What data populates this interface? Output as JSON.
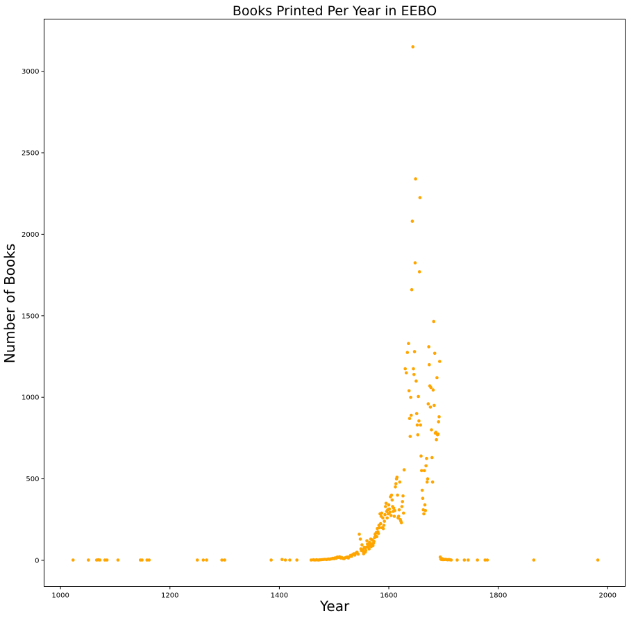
{
  "chart_data": {
    "type": "scatter",
    "title": "Books Printed Per Year in EEBO",
    "xlabel": "Year",
    "ylabel": "Number of Books",
    "xlim": [
      970,
      2032
    ],
    "ylim": [
      -160,
      3320
    ],
    "xticks": [
      1000,
      1200,
      1400,
      1600,
      1800,
      2000
    ],
    "yticks": [
      0,
      500,
      1000,
      1500,
      2000,
      2500,
      3000
    ],
    "grid": false,
    "legend": "none",
    "marker_color": "#ffa500",
    "series": [
      {
        "points": [
          [
            1023,
            2
          ],
          [
            1051,
            2
          ],
          [
            1066,
            2
          ],
          [
            1069,
            3
          ],
          [
            1072,
            2
          ],
          [
            1081,
            2
          ],
          [
            1085,
            2
          ],
          [
            1105,
            2
          ],
          [
            1146,
            2
          ],
          [
            1149,
            2
          ],
          [
            1158,
            2
          ],
          [
            1162,
            2
          ],
          [
            1250,
            2
          ],
          [
            1261,
            2
          ],
          [
            1267,
            2
          ],
          [
            1295,
            2
          ],
          [
            1300,
            2
          ],
          [
            1385,
            2
          ],
          [
            1405,
            5
          ],
          [
            1411,
            2
          ],
          [
            1419,
            2
          ],
          [
            1432,
            2
          ],
          [
            1458,
            2
          ],
          [
            1462,
            3
          ],
          [
            1465,
            2
          ],
          [
            1468,
            3
          ],
          [
            1471,
            2
          ],
          [
            1474,
            3
          ],
          [
            1477,
            4
          ],
          [
            1480,
            5
          ],
          [
            1483,
            6
          ],
          [
            1486,
            5
          ],
          [
            1488,
            7
          ],
          [
            1490,
            8
          ],
          [
            1492,
            6
          ],
          [
            1494,
            9
          ],
          [
            1496,
            10
          ],
          [
            1498,
            12
          ],
          [
            1500,
            10
          ],
          [
            1502,
            15
          ],
          [
            1504,
            13
          ],
          [
            1506,
            20
          ],
          [
            1508,
            18
          ],
          [
            1510,
            22
          ],
          [
            1512,
            14
          ],
          [
            1514,
            17
          ],
          [
            1516,
            12
          ],
          [
            1518,
            10
          ],
          [
            1520,
            15
          ],
          [
            1522,
            18
          ],
          [
            1524,
            20
          ],
          [
            1526,
            14
          ],
          [
            1528,
            22
          ],
          [
            1530,
            30
          ],
          [
            1532,
            25
          ],
          [
            1534,
            35
          ],
          [
            1536,
            40
          ],
          [
            1538,
            32
          ],
          [
            1540,
            45
          ],
          [
            1542,
            50
          ],
          [
            1544,
            38
          ],
          [
            1546,
            160
          ],
          [
            1548,
            130
          ],
          [
            1549,
            70
          ],
          [
            1550,
            60
          ],
          [
            1551,
            95
          ],
          [
            1552,
            65
          ],
          [
            1553,
            55
          ],
          [
            1554,
            40
          ],
          [
            1555,
            80
          ],
          [
            1556,
            75
          ],
          [
            1557,
            50
          ],
          [
            1558,
            60
          ],
          [
            1559,
            80
          ],
          [
            1560,
            120
          ],
          [
            1561,
            100
          ],
          [
            1562,
            90
          ],
          [
            1563,
            85
          ],
          [
            1564,
            70
          ],
          [
            1565,
            110
          ],
          [
            1566,
            95
          ],
          [
            1567,
            130
          ],
          [
            1568,
            85
          ],
          [
            1569,
            100
          ],
          [
            1570,
            125
          ],
          [
            1571,
            90
          ],
          [
            1572,
            105
          ],
          [
            1573,
            115
          ],
          [
            1574,
            140
          ],
          [
            1575,
            160
          ],
          [
            1576,
            150
          ],
          [
            1577,
            170
          ],
          [
            1578,
            145
          ],
          [
            1579,
            195
          ],
          [
            1580,
            175
          ],
          [
            1581,
            165
          ],
          [
            1582,
            215
          ],
          [
            1583,
            200
          ],
          [
            1584,
            285
          ],
          [
            1585,
            225
          ],
          [
            1586,
            270
          ],
          [
            1587,
            290
          ],
          [
            1588,
            200
          ],
          [
            1589,
            260
          ],
          [
            1590,
            195
          ],
          [
            1591,
            215
          ],
          [
            1592,
            240
          ],
          [
            1593,
            280
          ],
          [
            1594,
            330
          ],
          [
            1595,
            350
          ],
          [
            1596,
            300
          ],
          [
            1597,
            260
          ],
          [
            1598,
            310
          ],
          [
            1599,
            285
          ],
          [
            1600,
            340
          ],
          [
            1601,
            315
          ],
          [
            1602,
            295
          ],
          [
            1603,
            390
          ],
          [
            1604,
            275
          ],
          [
            1605,
            400
          ],
          [
            1606,
            370
          ],
          [
            1607,
            330
          ],
          [
            1608,
            300
          ],
          [
            1609,
            320
          ],
          [
            1610,
            270
          ],
          [
            1611,
            305
          ],
          [
            1612,
            450
          ],
          [
            1613,
            470
          ],
          [
            1614,
            500
          ],
          [
            1615,
            510
          ],
          [
            1616,
            400
          ],
          [
            1617,
            260
          ],
          [
            1618,
            270
          ],
          [
            1619,
            310
          ],
          [
            1620,
            480
          ],
          [
            1621,
            250
          ],
          [
            1622,
            240
          ],
          [
            1623,
            230
          ],
          [
            1624,
            330
          ],
          [
            1625,
            360
          ],
          [
            1626,
            395
          ],
          [
            1627,
            290
          ],
          [
            1628,
            555
          ],
          [
            1630,
            1175
          ],
          [
            1632,
            1150
          ],
          [
            1634,
            1275
          ],
          [
            1636,
            1330
          ],
          [
            1637,
            1040
          ],
          [
            1638,
            870
          ],
          [
            1639,
            760
          ],
          [
            1640,
            1000
          ],
          [
            1641,
            890
          ],
          [
            1642,
            1660
          ],
          [
            1643,
            2080
          ],
          [
            1644,
            3150
          ],
          [
            1645,
            1175
          ],
          [
            1646,
            1140
          ],
          [
            1647,
            1280
          ],
          [
            1648,
            1825
          ],
          [
            1649,
            2340
          ],
          [
            1650,
            1100
          ],
          [
            1651,
            900
          ],
          [
            1652,
            830
          ],
          [
            1653,
            770
          ],
          [
            1654,
            1005
          ],
          [
            1655,
            855
          ],
          [
            1656,
            1770
          ],
          [
            1657,
            2225
          ],
          [
            1658,
            830
          ],
          [
            1659,
            640
          ],
          [
            1660,
            550
          ],
          [
            1661,
            430
          ],
          [
            1662,
            380
          ],
          [
            1663,
            310
          ],
          [
            1664,
            285
          ],
          [
            1665,
            550
          ],
          [
            1666,
            340
          ],
          [
            1667,
            305
          ],
          [
            1668,
            580
          ],
          [
            1669,
            625
          ],
          [
            1670,
            480
          ],
          [
            1671,
            500
          ],
          [
            1672,
            960
          ],
          [
            1673,
            1310
          ],
          [
            1674,
            1200
          ],
          [
            1675,
            1070
          ],
          [
            1676,
            940
          ],
          [
            1677,
            1060
          ],
          [
            1678,
            800
          ],
          [
            1679,
            630
          ],
          [
            1680,
            480
          ],
          [
            1681,
            1045
          ],
          [
            1682,
            1465
          ],
          [
            1683,
            950
          ],
          [
            1684,
            1270
          ],
          [
            1685,
            780
          ],
          [
            1686,
            785
          ],
          [
            1687,
            740
          ],
          [
            1688,
            1120
          ],
          [
            1689,
            770
          ],
          [
            1690,
            775
          ],
          [
            1691,
            850
          ],
          [
            1692,
            880
          ],
          [
            1693,
            1220
          ],
          [
            1694,
            20
          ],
          [
            1695,
            8
          ],
          [
            1696,
            5
          ],
          [
            1697,
            10
          ],
          [
            1698,
            6
          ],
          [
            1699,
            4
          ],
          [
            1700,
            7
          ],
          [
            1702,
            5
          ],
          [
            1704,
            6
          ],
          [
            1706,
            4
          ],
          [
            1708,
            3
          ],
          [
            1710,
            5
          ],
          [
            1712,
            3
          ],
          [
            1714,
            2
          ],
          [
            1725,
            2
          ],
          [
            1738,
            2
          ],
          [
            1745,
            2
          ],
          [
            1762,
            2
          ],
          [
            1776,
            2
          ],
          [
            1780,
            2
          ],
          [
            1865,
            2
          ],
          [
            1982,
            2
          ]
        ]
      }
    ]
  }
}
